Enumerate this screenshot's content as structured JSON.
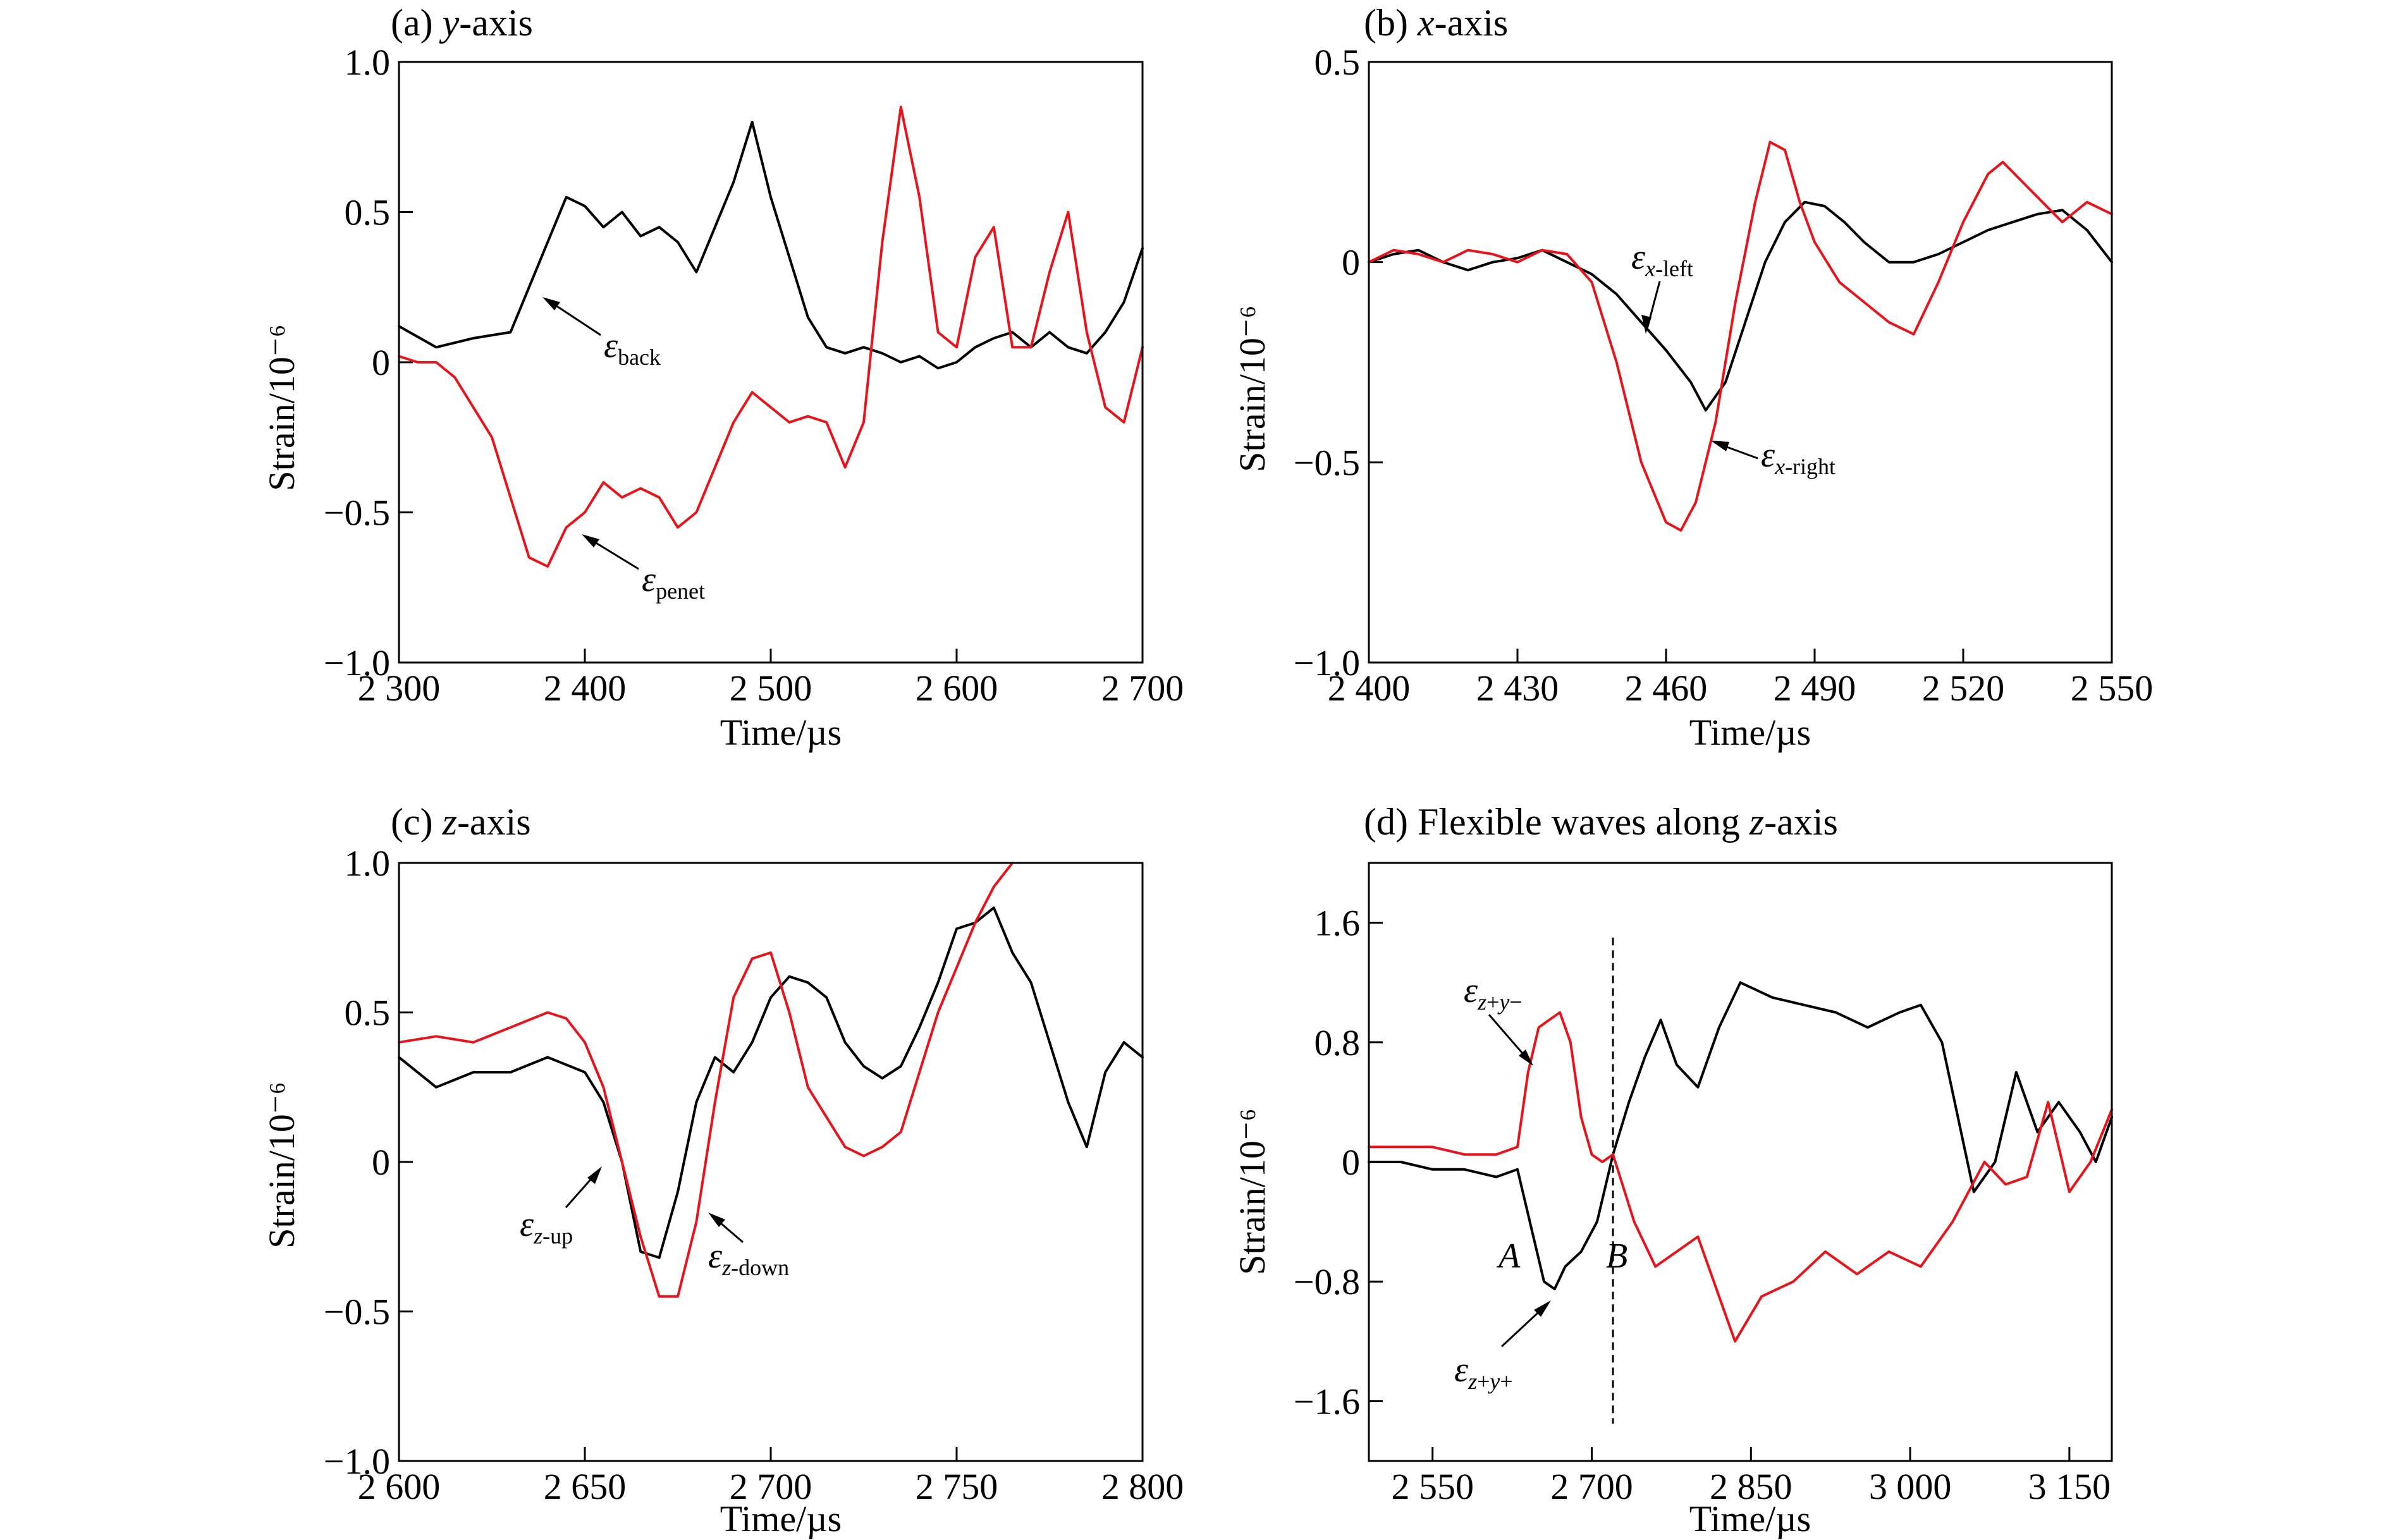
{
  "chart_data": [
    {
      "type": "line",
      "panel_title": "(a) y-axis",
      "xlabel": "Time/µs",
      "ylabel": "Strain/10⁻⁶",
      "xlim": [
        2300,
        2700
      ],
      "ylim": [
        -1.0,
        1.0
      ],
      "xticks": [
        2300,
        2400,
        2500,
        2600,
        2700
      ],
      "xtick_labels": [
        "2 300",
        "2 400",
        "2 500",
        "2 600",
        "2 700"
      ],
      "yticks": [
        -1.0,
        -0.5,
        0,
        0.5,
        1.0
      ],
      "ytick_labels": [
        "−1.0",
        "−0.5",
        "0",
        "0.5",
        "1.0"
      ],
      "series": [
        {
          "name": "back",
          "color": "#000000",
          "x": [
            2300,
            2320,
            2340,
            2360,
            2370,
            2380,
            2390,
            2400,
            2410,
            2420,
            2430,
            2440,
            2450,
            2460,
            2470,
            2480,
            2490,
            2500,
            2510,
            2520,
            2530,
            2540,
            2550,
            2560,
            2570,
            2580,
            2590,
            2600,
            2610,
            2620,
            2630,
            2640,
            2650,
            2660,
            2670,
            2680,
            2690,
            2700
          ],
          "y": [
            0.12,
            0.05,
            0.08,
            0.1,
            0.25,
            0.4,
            0.55,
            0.52,
            0.45,
            0.5,
            0.42,
            0.45,
            0.4,
            0.3,
            0.45,
            0.6,
            0.8,
            0.55,
            0.35,
            0.15,
            0.05,
            0.03,
            0.05,
            0.03,
            0.0,
            0.02,
            -0.02,
            0.0,
            0.05,
            0.08,
            0.1,
            0.05,
            0.1,
            0.05,
            0.03,
            0.1,
            0.2,
            0.38
          ]
        },
        {
          "name": "penet",
          "color": "#e8141c",
          "x": [
            2300,
            2310,
            2320,
            2330,
            2340,
            2350,
            2360,
            2370,
            2380,
            2390,
            2400,
            2410,
            2420,
            2430,
            2440,
            2450,
            2460,
            2470,
            2480,
            2490,
            2500,
            2510,
            2520,
            2530,
            2540,
            2550,
            2560,
            2570,
            2580,
            2590,
            2600,
            2610,
            2620,
            2630,
            2640,
            2650,
            2660,
            2670,
            2680,
            2690,
            2700
          ],
          "y": [
            0.02,
            0.0,
            0.0,
            -0.05,
            -0.15,
            -0.25,
            -0.45,
            -0.65,
            -0.68,
            -0.55,
            -0.5,
            -0.4,
            -0.45,
            -0.42,
            -0.45,
            -0.55,
            -0.5,
            -0.35,
            -0.2,
            -0.1,
            -0.15,
            -0.2,
            -0.18,
            -0.2,
            -0.35,
            -0.2,
            0.4,
            0.85,
            0.55,
            0.1,
            0.05,
            0.35,
            0.45,
            0.05,
            0.05,
            0.3,
            0.5,
            0.1,
            -0.15,
            -0.2,
            0.05
          ]
        }
      ],
      "annotations": [
        "εback",
        "εpenet"
      ]
    },
    {
      "type": "line",
      "panel_title": "(b) x-axis",
      "xlabel": "Time/µs",
      "ylabel": "Strain/10⁻⁶",
      "xlim": [
        2400,
        2550
      ],
      "ylim": [
        -1.0,
        0.5
      ],
      "xticks": [
        2400,
        2430,
        2460,
        2490,
        2520,
        2550
      ],
      "xtick_labels": [
        "2 400",
        "2 430",
        "2 460",
        "2 490",
        "2 520",
        "2 550"
      ],
      "yticks": [
        -1.0,
        -0.5,
        0,
        0.5
      ],
      "ytick_labels": [
        "−1.0",
        "−0.5",
        "0",
        "0.5"
      ],
      "series": [
        {
          "name": "x-left",
          "color": "#000000",
          "x": [
            2400,
            2405,
            2410,
            2415,
            2420,
            2425,
            2430,
            2435,
            2440,
            2445,
            2450,
            2455,
            2460,
            2465,
            2468,
            2472,
            2476,
            2480,
            2484,
            2488,
            2492,
            2496,
            2500,
            2505,
            2510,
            2515,
            2520,
            2525,
            2530,
            2535,
            2540,
            2545,
            2550
          ],
          "y": [
            0.0,
            0.02,
            0.03,
            0.0,
            -0.02,
            0.0,
            0.01,
            0.03,
            0.0,
            -0.03,
            -0.08,
            -0.15,
            -0.22,
            -0.3,
            -0.37,
            -0.3,
            -0.15,
            0.0,
            0.1,
            0.15,
            0.14,
            0.1,
            0.05,
            0.0,
            0.0,
            0.02,
            0.05,
            0.08,
            0.1,
            0.12,
            0.13,
            0.08,
            0.0
          ]
        },
        {
          "name": "x-right",
          "color": "#e8141c",
          "x": [
            2400,
            2405,
            2410,
            2415,
            2420,
            2425,
            2430,
            2435,
            2440,
            2445,
            2450,
            2455,
            2460,
            2463,
            2466,
            2470,
            2474,
            2478,
            2481,
            2484,
            2487,
            2490,
            2495,
            2500,
            2505,
            2510,
            2515,
            2520,
            2525,
            2528,
            2532,
            2536,
            2540,
            2545,
            2550
          ],
          "y": [
            0.0,
            0.03,
            0.02,
            0.0,
            0.03,
            0.02,
            0.0,
            0.03,
            0.02,
            -0.05,
            -0.25,
            -0.5,
            -0.65,
            -0.67,
            -0.6,
            -0.4,
            -0.1,
            0.15,
            0.3,
            0.28,
            0.15,
            0.05,
            -0.05,
            -0.1,
            -0.15,
            -0.18,
            -0.05,
            0.1,
            0.22,
            0.25,
            0.2,
            0.15,
            0.1,
            0.15,
            0.12
          ]
        }
      ],
      "annotations": [
        "εx-left",
        "εx-right"
      ]
    },
    {
      "type": "line",
      "panel_title": "(c) z-axis",
      "xlabel": "Time/µs",
      "ylabel": "Strain/10⁻⁶",
      "xlim": [
        2600,
        2800
      ],
      "ylim": [
        -1.0,
        1.0
      ],
      "xticks": [
        2600,
        2650,
        2700,
        2750,
        2800
      ],
      "xtick_labels": [
        "2 600",
        "2 650",
        "2 700",
        "2 750",
        "2 800"
      ],
      "yticks": [
        -1.0,
        -0.5,
        0,
        0.5,
        1.0
      ],
      "ytick_labels": [
        "−1.0",
        "−0.5",
        "0",
        "0.5",
        "1.0"
      ],
      "series": [
        {
          "name": "z-up",
          "color": "#000000",
          "x": [
            2600,
            2605,
            2610,
            2620,
            2630,
            2640,
            2650,
            2655,
            2660,
            2665,
            2670,
            2675,
            2680,
            2685,
            2690,
            2695,
            2700,
            2705,
            2710,
            2715,
            2720,
            2725,
            2730,
            2735,
            2740,
            2745,
            2750,
            2755,
            2760,
            2765,
            2770,
            2775,
            2780,
            2785,
            2790,
            2795,
            2800
          ],
          "y": [
            0.35,
            0.3,
            0.25,
            0.3,
            0.3,
            0.35,
            0.3,
            0.2,
            0.0,
            -0.3,
            -0.32,
            -0.1,
            0.2,
            0.35,
            0.3,
            0.4,
            0.55,
            0.62,
            0.6,
            0.55,
            0.4,
            0.32,
            0.28,
            0.32,
            0.45,
            0.6,
            0.78,
            0.8,
            0.85,
            0.7,
            0.6,
            0.4,
            0.2,
            0.05,
            0.3,
            0.4,
            0.35
          ]
        },
        {
          "name": "z-down",
          "color": "#e8141c",
          "x": [
            2600,
            2610,
            2620,
            2630,
            2640,
            2645,
            2650,
            2655,
            2660,
            2665,
            2670,
            2675,
            2680,
            2685,
            2690,
            2695,
            2700,
            2705,
            2710,
            2715,
            2720,
            2725,
            2730,
            2735,
            2740,
            2745,
            2750,
            2755,
            2760,
            2765
          ],
          "y": [
            0.4,
            0.42,
            0.4,
            0.45,
            0.5,
            0.48,
            0.4,
            0.25,
            0.0,
            -0.25,
            -0.45,
            -0.45,
            -0.2,
            0.2,
            0.55,
            0.68,
            0.7,
            0.5,
            0.25,
            0.15,
            0.05,
            0.02,
            0.05,
            0.1,
            0.3,
            0.5,
            0.65,
            0.8,
            0.92,
            1.0
          ]
        }
      ],
      "annotations": [
        "εz-up",
        "εz-down"
      ]
    },
    {
      "type": "line",
      "panel_title": "(d) Flexible waves along z-axis",
      "xlabel": "Time/µs",
      "ylabel": "Strain/10⁻⁶",
      "xlim": [
        2490,
        3190
      ],
      "ylim": [
        -2.0,
        2.0
      ],
      "xticks": [
        2550,
        2700,
        2850,
        3000,
        3150
      ],
      "xtick_labels": [
        "2 550",
        "2 700",
        "2 850",
        "3 000",
        "3 150"
      ],
      "yticks": [
        -1.6,
        -0.8,
        0,
        0.8,
        1.6
      ],
      "ytick_labels": [
        "−1.6",
        "−0.8",
        "0",
        "0.8",
        "1.6"
      ],
      "vline_x": 2720,
      "points": [
        "A",
        "B"
      ],
      "series": [
        {
          "name": "z+y+",
          "color": "#000000",
          "x": [
            2490,
            2520,
            2550,
            2580,
            2610,
            2630,
            2645,
            2655,
            2665,
            2675,
            2690,
            2705,
            2720,
            2735,
            2750,
            2765,
            2780,
            2800,
            2820,
            2840,
            2870,
            2900,
            2930,
            2960,
            2990,
            3010,
            3030,
            3045,
            3060,
            3080,
            3100,
            3120,
            3140,
            3160,
            3175,
            3190
          ],
          "y": [
            0.0,
            0.0,
            -0.05,
            -0.05,
            -0.1,
            -0.05,
            -0.5,
            -0.8,
            -0.85,
            -0.7,
            -0.6,
            -0.4,
            0.05,
            0.4,
            0.7,
            0.95,
            0.65,
            0.5,
            0.9,
            1.2,
            1.1,
            1.05,
            1.0,
            0.9,
            1.0,
            1.05,
            0.8,
            0.3,
            -0.2,
            0.0,
            0.6,
            0.2,
            0.4,
            0.2,
            0.0,
            0.3
          ]
        },
        {
          "name": "z+y−",
          "color": "#e8141c",
          "x": [
            2490,
            2520,
            2550,
            2580,
            2610,
            2630,
            2640,
            2650,
            2660,
            2670,
            2680,
            2690,
            2700,
            2710,
            2720,
            2740,
            2760,
            2780,
            2800,
            2820,
            2835,
            2860,
            2890,
            2920,
            2950,
            2980,
            3010,
            3040,
            3070,
            3090,
            3110,
            3130,
            3150,
            3170,
            3190
          ],
          "y": [
            0.1,
            0.1,
            0.1,
            0.05,
            0.05,
            0.1,
            0.6,
            0.9,
            0.95,
            1.0,
            0.8,
            0.3,
            0.05,
            0.0,
            0.05,
            -0.4,
            -0.7,
            -0.6,
            -0.5,
            -0.9,
            -1.2,
            -0.9,
            -0.8,
            -0.6,
            -0.75,
            -0.6,
            -0.7,
            -0.4,
            0.0,
            -0.15,
            -0.1,
            0.4,
            -0.2,
            0.0,
            0.35
          ]
        }
      ],
      "annotations": [
        "εz+y−",
        "εz+y+"
      ]
    }
  ]
}
